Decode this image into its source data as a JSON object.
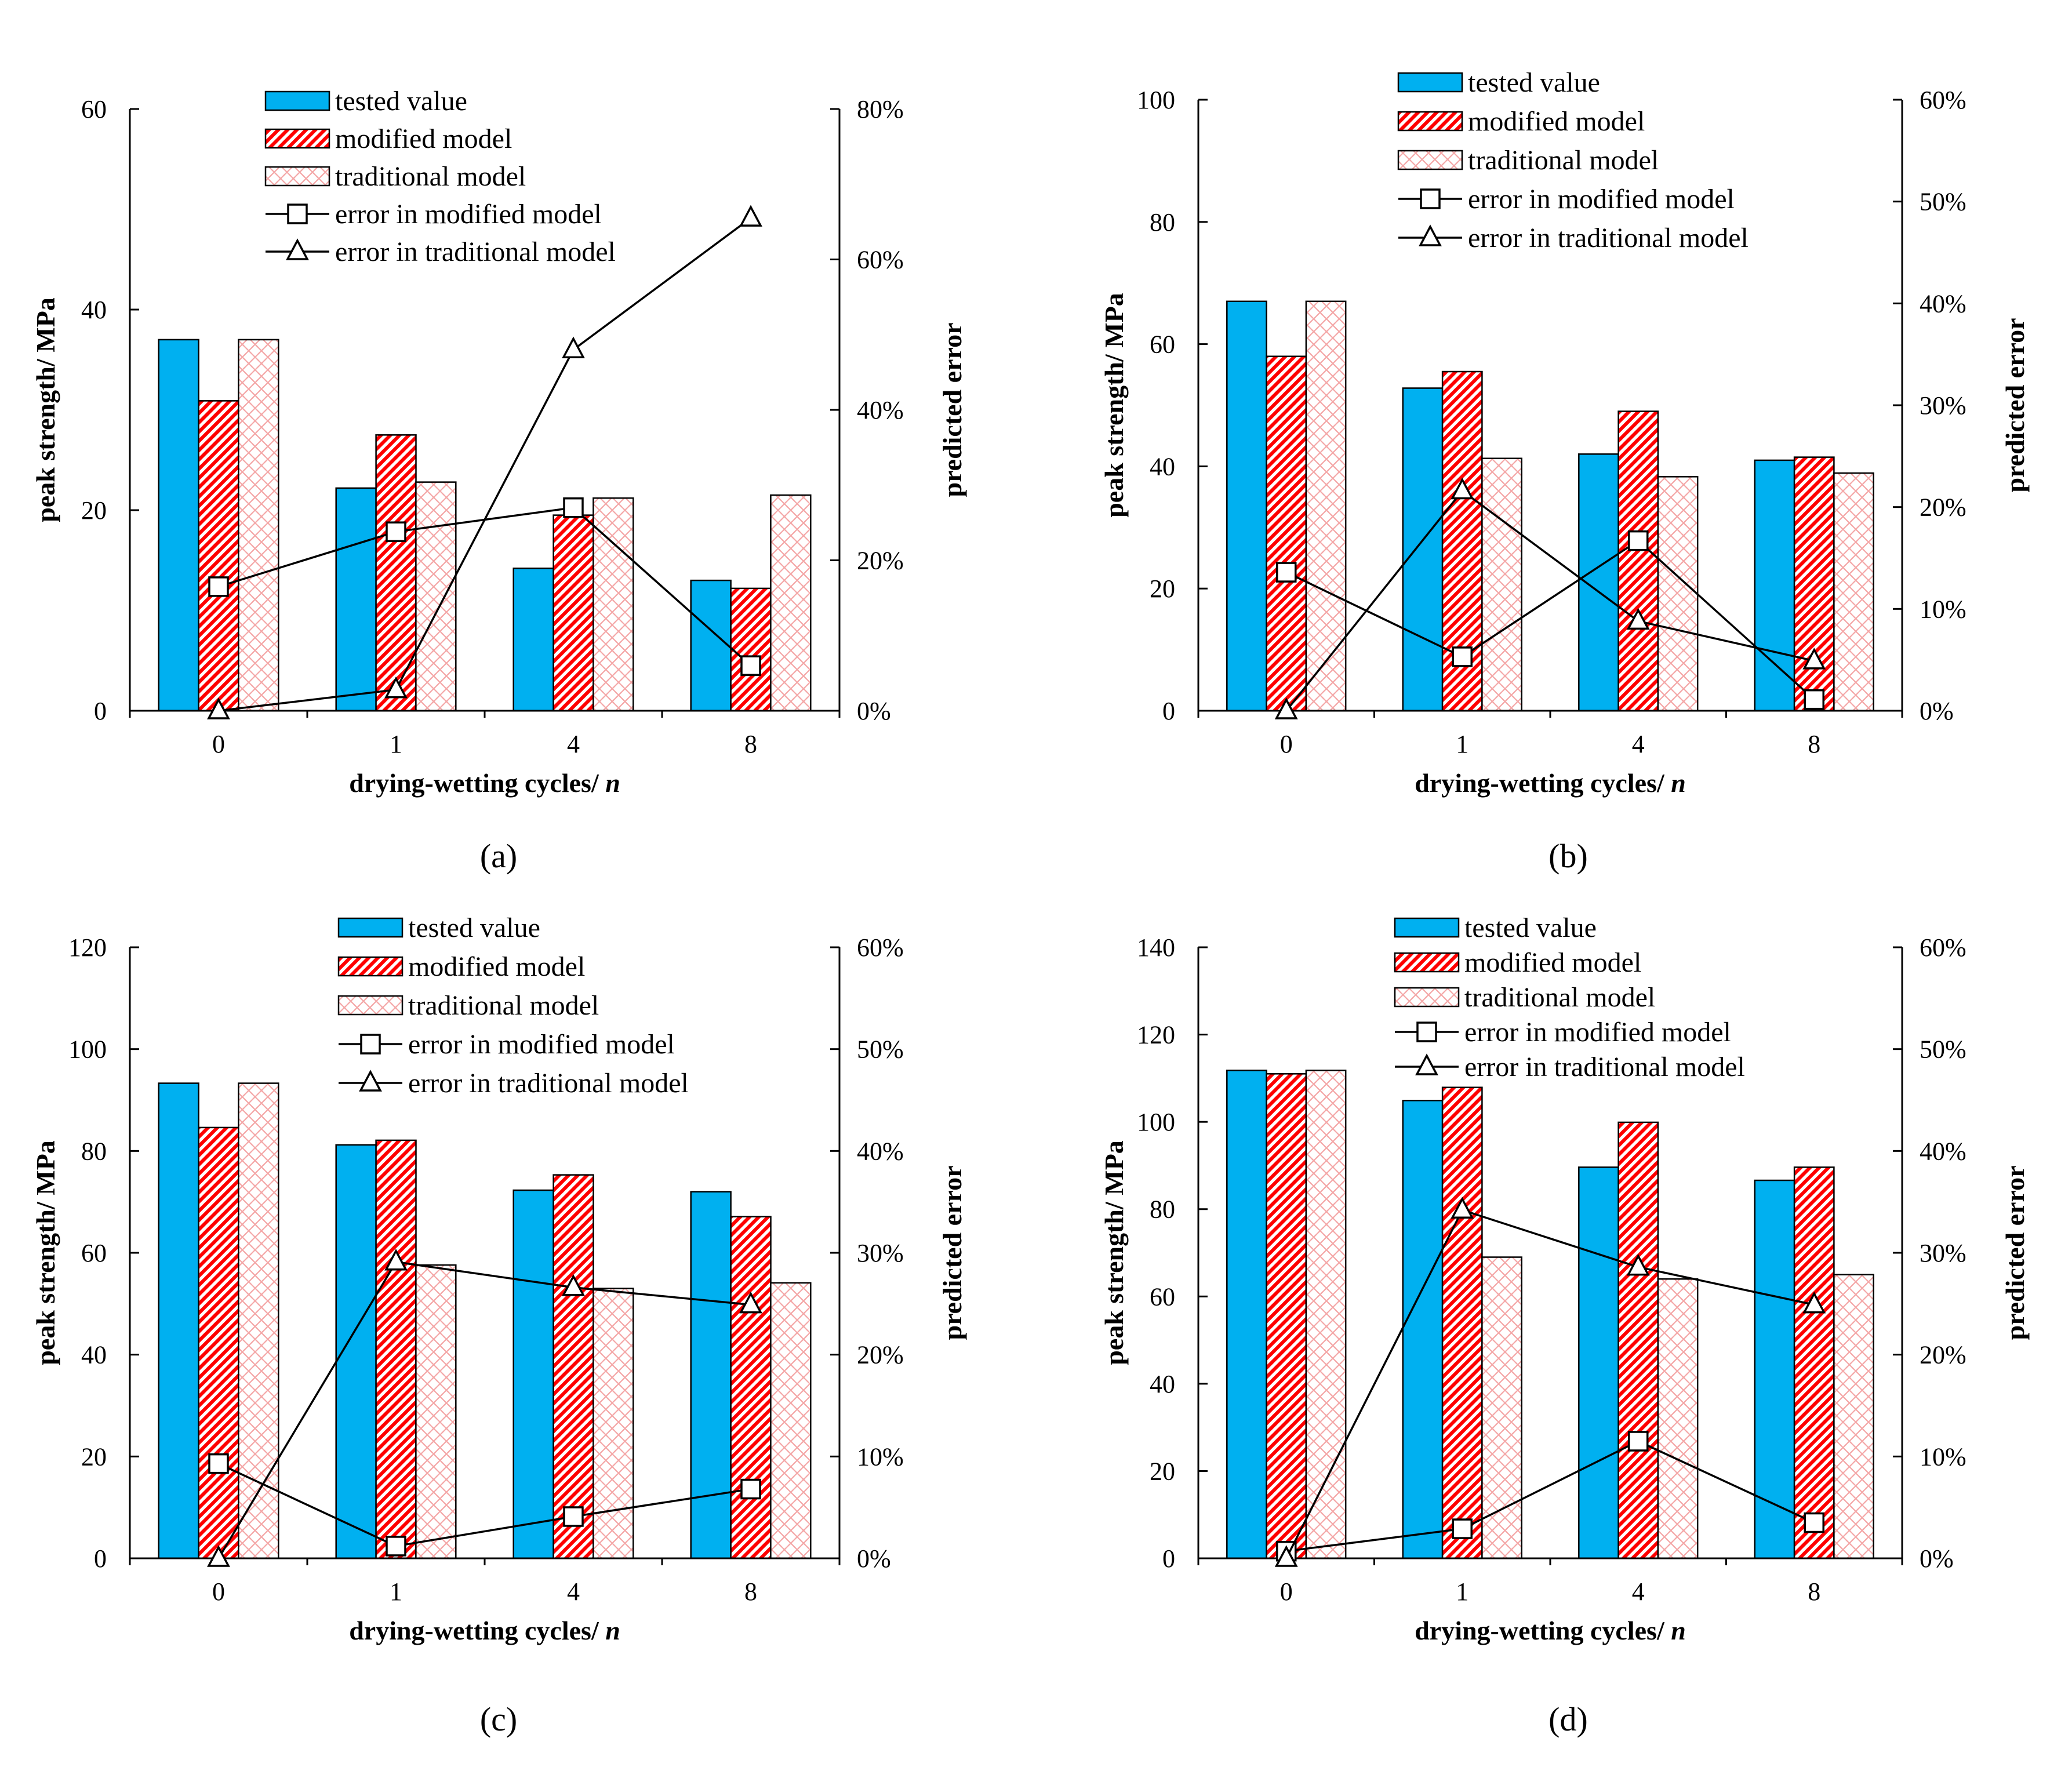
{
  "figure": {
    "colors": {
      "tested": "#00B0F0",
      "modified": "#FF0000",
      "traditional": "#F4A6A6",
      "line": "#000000",
      "text": "#000000"
    }
  },
  "chart_data": [
    {
      "panel": "(a)",
      "type": "bar+line",
      "categories": [
        "0",
        "1",
        "4",
        "8"
      ],
      "xlabel": "drying-wetting cycles/ ",
      "xlabel_italic": "n",
      "ylabel": "peak strength/ MPa",
      "y2label": "predicted error",
      "ylim": [
        0,
        60
      ],
      "yticks": [
        "0",
        "20",
        "40",
        "60"
      ],
      "y2lim": [
        0,
        80
      ],
      "y2ticks": [
        "0%",
        "20%",
        "40%",
        "60%",
        "80%"
      ],
      "legend": [
        "tested value",
        "modified model",
        "traditional model",
        "error in modified model",
        "error in traditional model"
      ],
      "series": [
        {
          "name": "tested value",
          "kind": "bar",
          "values": [
            37.0,
            22.2,
            14.2,
            13.0
          ]
        },
        {
          "name": "modified model",
          "kind": "bar",
          "values": [
            30.9,
            27.5,
            19.5,
            12.2
          ]
        },
        {
          "name": "traditional model",
          "kind": "bar",
          "values": [
            37.0,
            22.8,
            21.2,
            21.5
          ]
        },
        {
          "name": "error in modified model",
          "kind": "line",
          "marker": "square",
          "values": [
            16.5,
            23.8,
            27.0,
            6.0
          ]
        },
        {
          "name": "error in traditional model",
          "kind": "line",
          "marker": "triangle",
          "values": [
            0.0,
            2.8,
            48.0,
            65.5
          ]
        }
      ]
    },
    {
      "panel": "(b)",
      "type": "bar+line",
      "categories": [
        "0",
        "1",
        "4",
        "8"
      ],
      "xlabel": "drying-wetting cycles/ ",
      "xlabel_italic": "n",
      "ylabel": "peak strength/ MPa",
      "y2label": "predicted error",
      "ylim": [
        0,
        100
      ],
      "yticks": [
        "0",
        "20",
        "40",
        "60",
        "80",
        "100"
      ],
      "y2lim": [
        0,
        60
      ],
      "y2ticks": [
        "0%",
        "10%",
        "20%",
        "30%",
        "40%",
        "50%",
        "60%"
      ],
      "legend": [
        "tested value",
        "modified model",
        "traditional model",
        "error in modified model",
        "error in traditional model"
      ],
      "series": [
        {
          "name": "tested value",
          "kind": "bar",
          "values": [
            67.0,
            52.8,
            42.0,
            41.0
          ]
        },
        {
          "name": "modified model",
          "kind": "bar",
          "values": [
            58.0,
            55.5,
            49.0,
            41.5
          ]
        },
        {
          "name": "traditional model",
          "kind": "bar",
          "values": [
            67.0,
            41.3,
            38.3,
            38.9
          ]
        },
        {
          "name": "error in modified model",
          "kind": "line",
          "marker": "square",
          "values": [
            13.6,
            5.3,
            16.7,
            1.1
          ]
        },
        {
          "name": "error in traditional model",
          "kind": "line",
          "marker": "triangle",
          "values": [
            0.0,
            21.6,
            8.8,
            4.9
          ]
        }
      ]
    },
    {
      "panel": "(c)",
      "type": "bar+line",
      "categories": [
        "0",
        "1",
        "4",
        "8"
      ],
      "xlabel": "drying-wetting cycles/ ",
      "xlabel_italic": "n",
      "ylabel": "peak strength/ MPa",
      "y2label": "predicted error",
      "ylim": [
        0,
        120
      ],
      "yticks": [
        "0",
        "20",
        "40",
        "60",
        "80",
        "100",
        "120"
      ],
      "y2lim": [
        0,
        60
      ],
      "y2ticks": [
        "0%",
        "10%",
        "20%",
        "30%",
        "40%",
        "50%",
        "60%"
      ],
      "legend": [
        "tested value",
        "modified model",
        "traditional model",
        "error in modified model",
        "error in traditional model"
      ],
      "series": [
        {
          "name": "tested value",
          "kind": "bar",
          "values": [
            93.3,
            81.2,
            72.3,
            72.0
          ]
        },
        {
          "name": "modified model",
          "kind": "bar",
          "values": [
            84.6,
            82.1,
            75.3,
            67.1
          ]
        },
        {
          "name": "traditional model",
          "kind": "bar",
          "values": [
            93.3,
            57.6,
            53.0,
            54.1
          ]
        },
        {
          "name": "error in modified model",
          "kind": "line",
          "marker": "square",
          "values": [
            9.3,
            1.2,
            4.1,
            6.8
          ]
        },
        {
          "name": "error in traditional model",
          "kind": "line",
          "marker": "triangle",
          "values": [
            0.0,
            29.1,
            26.6,
            24.9
          ]
        }
      ]
    },
    {
      "panel": "(d)",
      "type": "bar+line",
      "categories": [
        "0",
        "1",
        "4",
        "8"
      ],
      "xlabel": "drying-wetting cycles/ ",
      "xlabel_italic": "n",
      "ylabel": "peak strength/ MPa",
      "y2label": "predicted error",
      "ylim": [
        0,
        140
      ],
      "yticks": [
        "0",
        "20",
        "40",
        "60",
        "80",
        "100",
        "120",
        "140"
      ],
      "y2lim": [
        0,
        60
      ],
      "y2ticks": [
        "0%",
        "10%",
        "20%",
        "30%",
        "40%",
        "50%",
        "60%"
      ],
      "legend": [
        "tested value",
        "modified model",
        "traditional model",
        "error in modified model",
        "error in traditional model"
      ],
      "series": [
        {
          "name": "tested value",
          "kind": "bar",
          "values": [
            111.8,
            104.9,
            89.6,
            86.6
          ]
        },
        {
          "name": "modified model",
          "kind": "bar",
          "values": [
            111.0,
            107.9,
            99.9,
            89.6
          ]
        },
        {
          "name": "traditional model",
          "kind": "bar",
          "values": [
            111.8,
            69.0,
            64.0,
            65.0
          ]
        },
        {
          "name": "error in modified model",
          "kind": "line",
          "marker": "square",
          "values": [
            0.7,
            2.9,
            11.5,
            3.5
          ]
        },
        {
          "name": "error in traditional model",
          "kind": "line",
          "marker": "triangle",
          "values": [
            0.0,
            34.2,
            28.6,
            24.9
          ]
        }
      ]
    }
  ]
}
